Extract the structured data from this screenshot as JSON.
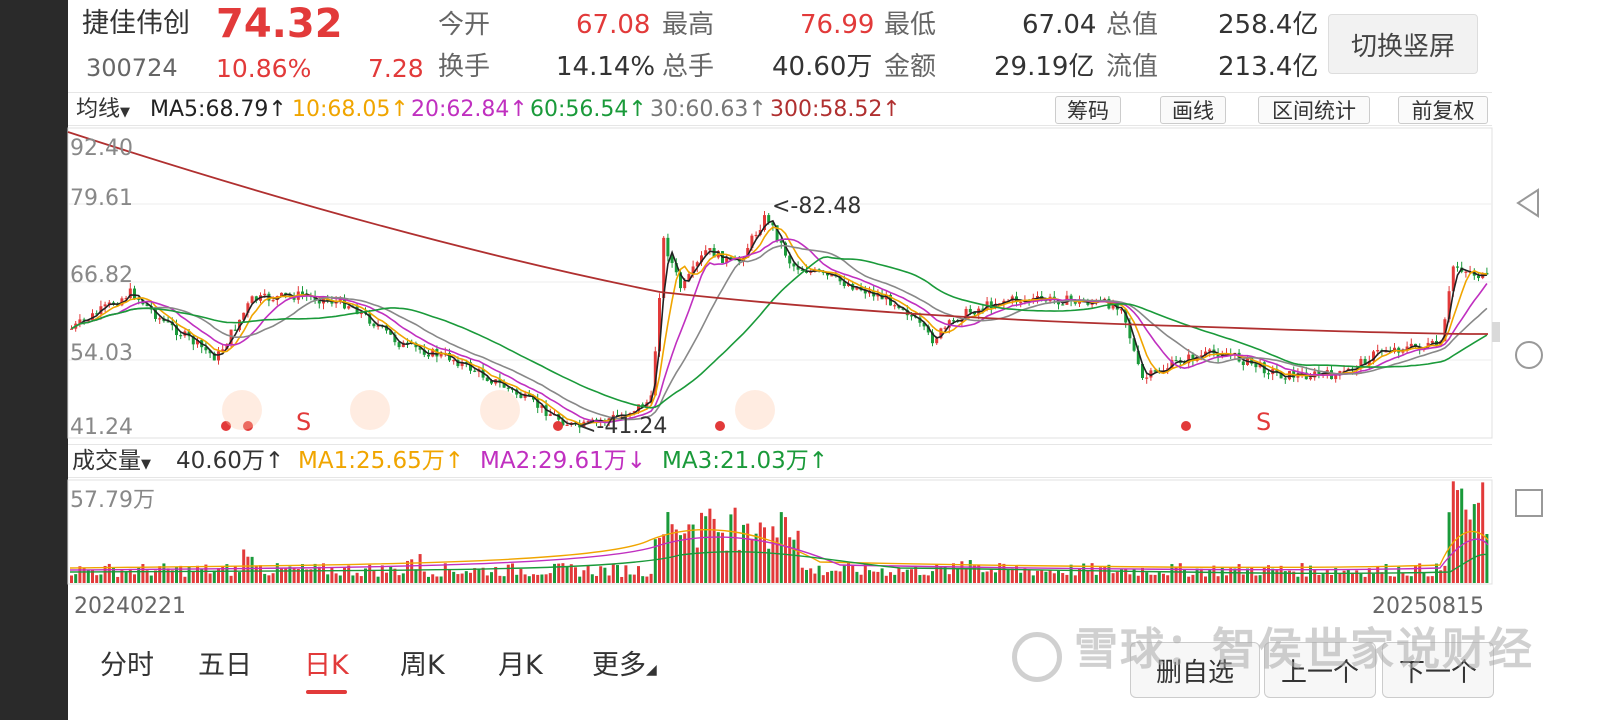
{
  "quote": {
    "name": "捷佳伟创",
    "price": "74.32",
    "code": "300724",
    "change_pct": "10.86%",
    "change": "7.28",
    "open_label": "今开",
    "open": "67.08",
    "high_label": "最高",
    "high": "76.99",
    "low_label": "最低",
    "low": "67.04",
    "mcap_label": "总值",
    "mcap": "258.4亿",
    "turnover_label": "换手",
    "turnover": "14.14%",
    "volume_label": "总手",
    "volume": "40.60万",
    "amount_label": "金额",
    "amount": "29.19亿",
    "float_label": "流值",
    "float_mcap": "213.4亿",
    "switch_button": "切换竖屏"
  },
  "ma_bar": {
    "selector": "均线",
    "ma5": "MA5:68.79↑",
    "ma10": "10:68.05↑",
    "ma20": "20:62.84↑",
    "ma60": "60:56.54↑",
    "ma30": "30:60.63↑",
    "ma300": "300:58.52↑",
    "tools": [
      "筹码",
      "画线",
      "区间统计",
      "前复权"
    ]
  },
  "price_axis": [
    "92.40",
    "79.61",
    "66.82",
    "54.03",
    "41.24"
  ],
  "annotations": {
    "high": "<-82.48",
    "low": "<-41.24",
    "s": "S"
  },
  "vol_bar": {
    "selector": "成交量",
    "vol": "40.60万↑",
    "ma1": "MA1:25.65万↑",
    "ma2": "MA2:29.61万↓",
    "ma3": "MA3:21.03万↑",
    "axis_max": "57.79万"
  },
  "dates": {
    "start": "20240221",
    "end": "20250815"
  },
  "tabs": [
    "分时",
    "五日",
    "日K",
    "周K",
    "月K",
    "更多"
  ],
  "active_tab": "日K",
  "buttons": {
    "watchlist": "删自选",
    "prev": "上一个",
    "next": "下一个"
  },
  "watermark": "雪球：智侯世家说财经",
  "colors": {
    "up": "#e23a3a",
    "down": "#1a9a3a",
    "ma5": "#222222",
    "ma10": "#f0a500",
    "ma20": "#c030c0",
    "ma60": "#1a9a3a",
    "ma30": "#888888",
    "ma300": "#b03030"
  }
}
